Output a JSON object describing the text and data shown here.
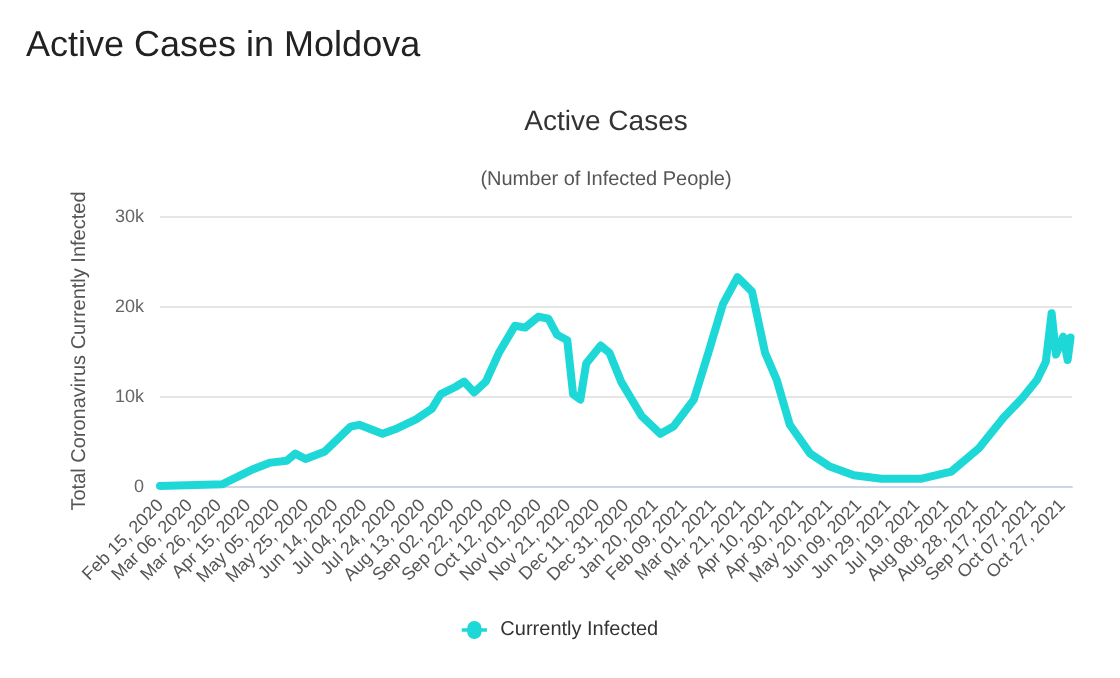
{
  "chart_data": {
    "type": "line",
    "title": "Active Cases",
    "subtitle": "(Number of Infected People)",
    "annotations": [
      "Active Cases in Moldova"
    ],
    "ylabel": "Total Coronavirus Currently Infected",
    "x": [
      "2020-02-15",
      "2020-03-29",
      "2020-04-18",
      "2020-05-01",
      "2020-05-12",
      "2020-05-18",
      "2020-05-25",
      "2020-06-07",
      "2020-06-25",
      "2020-07-01",
      "2020-07-17",
      "2020-07-27",
      "2020-08-09",
      "2020-08-20",
      "2020-08-26",
      "2020-09-05",
      "2020-09-11",
      "2020-09-18",
      "2020-09-26",
      "2020-10-05",
      "2020-10-16",
      "2020-10-23",
      "2020-11-01",
      "2020-11-08",
      "2020-11-14",
      "2020-11-21",
      "2020-11-25",
      "2020-11-30",
      "2020-12-04",
      "2020-12-14",
      "2020-12-20",
      "2020-12-28",
      "2021-01-11",
      "2021-01-24",
      "2021-02-02",
      "2021-02-16",
      "2021-02-26",
      "2021-03-08",
      "2021-03-18",
      "2021-03-28",
      "2021-04-06",
      "2021-04-14",
      "2021-04-23",
      "2021-05-07",
      "2021-05-20",
      "2021-06-06",
      "2021-06-25",
      "2021-07-22",
      "2021-08-12",
      "2021-08-31",
      "2021-09-17",
      "2021-09-30",
      "2021-10-10",
      "2021-10-16",
      "2021-10-20",
      "2021-10-23",
      "2021-10-28",
      "2021-10-31",
      "2021-11-02"
    ],
    "series": [
      {
        "name": "Currently Infected",
        "color": "#1ed8d8",
        "values": [
          0,
          200,
          1800,
          2600,
          2800,
          3600,
          3000,
          3800,
          6600,
          6800,
          5800,
          6400,
          7400,
          8600,
          10200,
          11000,
          11600,
          10400,
          11600,
          14800,
          17800,
          17600,
          18800,
          18600,
          16800,
          16200,
          10200,
          9600,
          13600,
          15600,
          14800,
          11600,
          7800,
          5800,
          6600,
          9600,
          14800,
          20200,
          23200,
          21600,
          14800,
          11800,
          6800,
          3600,
          2200,
          1200,
          800,
          800,
          1600,
          4200,
          7600,
          9800,
          11800,
          13800,
          19200,
          14600,
          16600,
          14000,
          16500
        ]
      }
    ],
    "ylim": [
      0,
      30000
    ],
    "yticks": [
      {
        "value": 0,
        "label": "0"
      },
      {
        "value": 10000,
        "label": "10k"
      },
      {
        "value": 20000,
        "label": "20k"
      },
      {
        "value": 30000,
        "label": "30k"
      }
    ],
    "xlim": [
      "2020-02-15",
      "2021-11-03"
    ],
    "xticks": [
      {
        "value": "2020-02-15",
        "label": "Feb 15, 2020"
      },
      {
        "value": "2020-03-06",
        "label": "Mar 06, 2020"
      },
      {
        "value": "2020-03-26",
        "label": "Mar 26, 2020"
      },
      {
        "value": "2020-04-15",
        "label": "Apr 15, 2020"
      },
      {
        "value": "2020-05-05",
        "label": "May 05, 2020"
      },
      {
        "value": "2020-05-25",
        "label": "May 25, 2020"
      },
      {
        "value": "2020-06-14",
        "label": "Jun 14, 2020"
      },
      {
        "value": "2020-07-04",
        "label": "Jul 04, 2020"
      },
      {
        "value": "2020-07-24",
        "label": "Jul 24, 2020"
      },
      {
        "value": "2020-08-13",
        "label": "Aug 13, 2020"
      },
      {
        "value": "2020-09-02",
        "label": "Sep 02, 2020"
      },
      {
        "value": "2020-09-22",
        "label": "Sep 22, 2020"
      },
      {
        "value": "2020-10-12",
        "label": "Oct 12, 2020"
      },
      {
        "value": "2020-11-01",
        "label": "Nov 01, 2020"
      },
      {
        "value": "2020-11-21",
        "label": "Nov 21, 2020"
      },
      {
        "value": "2020-12-11",
        "label": "Dec 11, 2020"
      },
      {
        "value": "2020-12-31",
        "label": "Dec 31, 2020"
      },
      {
        "value": "2021-01-20",
        "label": "Jan 20, 2021"
      },
      {
        "value": "2021-02-09",
        "label": "Feb 09, 2021"
      },
      {
        "value": "2021-03-01",
        "label": "Mar 01, 2021"
      },
      {
        "value": "2021-03-21",
        "label": "Mar 21, 2021"
      },
      {
        "value": "2021-04-10",
        "label": "Apr 10, 2021"
      },
      {
        "value": "2021-04-30",
        "label": "Apr 30, 2021"
      },
      {
        "value": "2021-05-20",
        "label": "May 20, 2021"
      },
      {
        "value": "2021-06-09",
        "label": "Jun 09, 2021"
      },
      {
        "value": "2021-06-29",
        "label": "Jun 29, 2021"
      },
      {
        "value": "2021-07-19",
        "label": "Jul 19, 2021"
      },
      {
        "value": "2021-08-08",
        "label": "Aug 08, 2021"
      },
      {
        "value": "2021-08-28",
        "label": "Aug 28, 2021"
      },
      {
        "value": "2021-09-17",
        "label": "Sep 17, 2021"
      },
      {
        "value": "2021-10-07",
        "label": "Oct 07, 2021"
      },
      {
        "value": "2021-10-27",
        "label": "Oct 27, 2021"
      }
    ],
    "grid": "y",
    "legend": "bottom",
    "marker": "none",
    "line_style": "solid"
  }
}
